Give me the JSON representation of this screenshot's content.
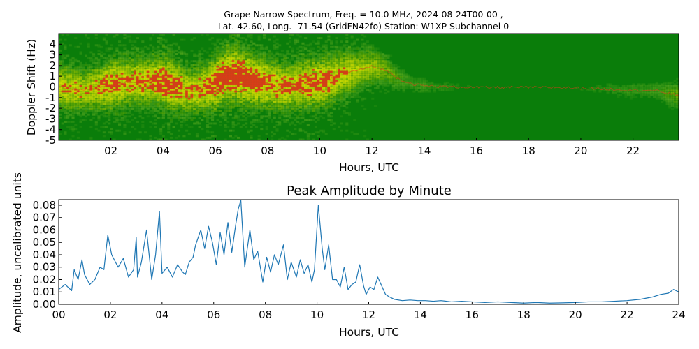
{
  "figure_title": {
    "line1": "Grape Narrow Spectrum, Freq. = 10.0 MHz, 2024-08-24T00-00 ,",
    "line2": "Lat.  42.60, Long. -71.54 (GridFN42fo) Station: W1XP Subchannel 0"
  },
  "colors": {
    "spectrogram_background": "#0a7d0a",
    "spectrogram_mid": "#e6e600",
    "spectrogram_peak": "#e23b1a",
    "line": "#1f77b4"
  },
  "chart_data": [
    {
      "type": "heatmap",
      "title": "",
      "xlabel": "Hours, UTC",
      "ylabel": "Doppler Shift (Hz)",
      "xlim": [
        0,
        23.75
      ],
      "ylim": [
        -5,
        5
      ],
      "x_ticks": [
        "02",
        "04",
        "06",
        "08",
        "10",
        "12",
        "14",
        "16",
        "18",
        "20",
        "22"
      ],
      "x_tick_values": [
        2,
        4,
        6,
        8,
        10,
        12,
        14,
        16,
        18,
        20,
        22
      ],
      "y_ticks": [
        "4",
        "3",
        "2",
        "1",
        "0",
        "-1",
        "-2",
        "-3",
        "-4",
        "-5"
      ],
      "y_tick_values": [
        4,
        3,
        2,
        1,
        0,
        -1,
        -2,
        -3,
        -4,
        -5
      ],
      "trace": {
        "hours": [
          0,
          0.5,
          1,
          1.5,
          2,
          2.5,
          3,
          3.5,
          4,
          4.5,
          5,
          5.5,
          6,
          6.5,
          7,
          7.5,
          8,
          8.5,
          9,
          9.5,
          10,
          10.5,
          11,
          11.5,
          12,
          12.5,
          13,
          13.5,
          14,
          14.5,
          15,
          15.5,
          16,
          17,
          18,
          19,
          20,
          21,
          22,
          22.5,
          23,
          23.75
        ],
        "doppler_hz": [
          0.0,
          -0.2,
          -0.3,
          -0.1,
          0.2,
          0.4,
          0.5,
          0.6,
          0.5,
          0.0,
          -0.4,
          -0.2,
          0.4,
          1.2,
          0.9,
          0.6,
          0.3,
          0.0,
          0.1,
          0.3,
          0.4,
          0.8,
          1.3,
          1.6,
          1.9,
          1.6,
          0.8,
          0.3,
          0.1,
          0.05,
          0.0,
          0.0,
          -0.05,
          -0.05,
          -0.05,
          -0.05,
          -0.1,
          -0.2,
          -0.3,
          -0.3,
          -0.4,
          -0.8
        ],
        "intensity": [
          0.75,
          0.75,
          0.7,
          0.75,
          0.85,
          0.8,
          0.8,
          0.8,
          0.9,
          0.85,
          0.75,
          0.8,
          0.9,
          0.95,
          0.95,
          0.9,
          0.85,
          0.8,
          0.8,
          0.85,
          0.85,
          0.8,
          0.75,
          0.65,
          0.6,
          0.5,
          0.35,
          0.25,
          0.25,
          0.2,
          0.2,
          0.15,
          0.15,
          0.12,
          0.12,
          0.12,
          0.15,
          0.2,
          0.25,
          0.25,
          0.3,
          0.45
        ]
      }
    },
    {
      "type": "line",
      "title": "Peak Amplitude by Minute",
      "xlabel": "Hours, UTC",
      "ylabel": "Amplitude, uncalibrated units",
      "xlim": [
        0,
        24
      ],
      "ylim": [
        0,
        0.0845
      ],
      "x_ticks": [
        "00",
        "02",
        "04",
        "06",
        "08",
        "10",
        "12",
        "14",
        "16",
        "18",
        "20",
        "22",
        "24"
      ],
      "x_tick_values": [
        0,
        2,
        4,
        6,
        8,
        10,
        12,
        14,
        16,
        18,
        20,
        22,
        24
      ],
      "y_ticks": [
        "0.00",
        "0.01",
        "0.02",
        "0.03",
        "0.04",
        "0.05",
        "0.06",
        "0.07",
        "0.08"
      ],
      "y_tick_values": [
        0,
        0.01,
        0.02,
        0.03,
        0.04,
        0.05,
        0.06,
        0.07,
        0.08
      ],
      "x": [
        0,
        0.25,
        0.5,
        0.6,
        0.75,
        0.9,
        1.0,
        1.2,
        1.4,
        1.6,
        1.75,
        1.9,
        2.05,
        2.3,
        2.5,
        2.7,
        2.9,
        3.0,
        3.05,
        3.2,
        3.4,
        3.6,
        3.75,
        3.9,
        4.0,
        4.2,
        4.4,
        4.6,
        4.8,
        4.9,
        5.05,
        5.2,
        5.3,
        5.5,
        5.65,
        5.8,
        5.95,
        6.1,
        6.25,
        6.4,
        6.55,
        6.7,
        6.85,
        6.95,
        7.05,
        7.2,
        7.4,
        7.55,
        7.7,
        7.9,
        8.05,
        8.2,
        8.35,
        8.5,
        8.7,
        8.85,
        9.0,
        9.2,
        9.35,
        9.5,
        9.65,
        9.8,
        9.9,
        10.05,
        10.2,
        10.3,
        10.45,
        10.6,
        10.75,
        10.9,
        11.05,
        11.2,
        11.35,
        11.5,
        11.65,
        11.8,
        11.9,
        12.05,
        12.2,
        12.35,
        12.5,
        12.65,
        12.8,
        13.0,
        13.3,
        13.6,
        13.9,
        14.2,
        14.5,
        14.8,
        15.2,
        15.6,
        16.0,
        16.5,
        17.0,
        17.5,
        18.0,
        18.5,
        19.0,
        19.5,
        20.0,
        20.5,
        21.0,
        21.5,
        22.0,
        22.5,
        23.0,
        23.3,
        23.6,
        23.8,
        24.0
      ],
      "y": [
        0.012,
        0.016,
        0.011,
        0.028,
        0.02,
        0.036,
        0.024,
        0.016,
        0.02,
        0.03,
        0.028,
        0.056,
        0.04,
        0.03,
        0.037,
        0.022,
        0.028,
        0.054,
        0.022,
        0.034,
        0.06,
        0.02,
        0.04,
        0.075,
        0.025,
        0.03,
        0.022,
        0.032,
        0.026,
        0.024,
        0.034,
        0.038,
        0.048,
        0.06,
        0.045,
        0.063,
        0.05,
        0.032,
        0.058,
        0.04,
        0.066,
        0.042,
        0.064,
        0.077,
        0.084,
        0.03,
        0.06,
        0.036,
        0.043,
        0.018,
        0.038,
        0.026,
        0.04,
        0.032,
        0.048,
        0.02,
        0.034,
        0.022,
        0.036,
        0.025,
        0.032,
        0.018,
        0.028,
        0.08,
        0.045,
        0.028,
        0.048,
        0.02,
        0.02,
        0.014,
        0.03,
        0.012,
        0.016,
        0.018,
        0.032,
        0.015,
        0.008,
        0.014,
        0.012,
        0.022,
        0.015,
        0.008,
        0.006,
        0.004,
        0.003,
        0.0035,
        0.003,
        0.003,
        0.0025,
        0.003,
        0.002,
        0.0025,
        0.002,
        0.0015,
        0.002,
        0.0015,
        0.001,
        0.0015,
        0.001,
        0.0012,
        0.0015,
        0.002,
        0.002,
        0.0025,
        0.003,
        0.004,
        0.006,
        0.008,
        0.009,
        0.012,
        0.01
      ]
    }
  ]
}
